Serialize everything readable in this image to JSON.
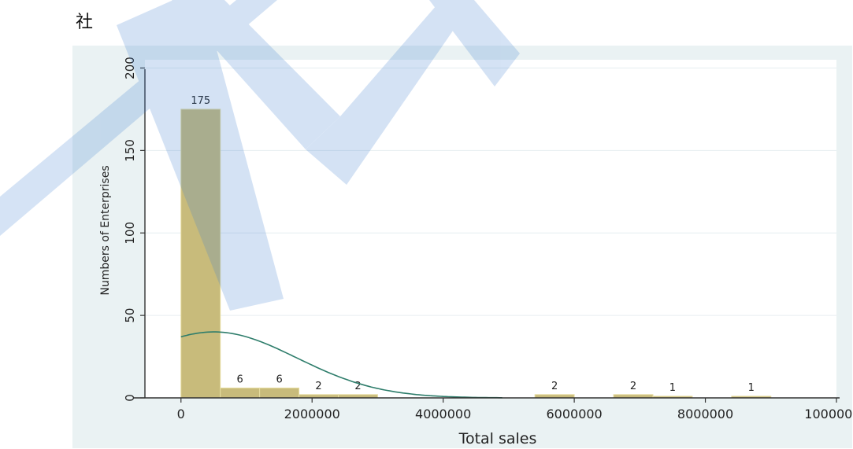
{
  "document": {
    "leading_char": "社"
  },
  "colors": {
    "bar_fill": "#c8bb7b",
    "bar_stroke": "#e6dca0",
    "curve": "#2e7d6b",
    "plot_bg": "#ffffff",
    "figure_bg": "#eaf2f3",
    "grid": "#e6eef0",
    "watermark": "#3f7fd1"
  },
  "chart_data": {
    "type": "bar",
    "title": "",
    "xlabel": "Total sales",
    "ylabel": "Numbers of Enterprises",
    "xlim": [
      -550000,
      10000000
    ],
    "ylim": [
      0,
      205
    ],
    "xticks": [
      0,
      2000000,
      4000000,
      6000000,
      8000000,
      10000000
    ],
    "xtick_labels": [
      "0",
      "2000000",
      "4000000",
      "6000000",
      "8000000",
      "10000000"
    ],
    "yticks": [
      0,
      50,
      100,
      150,
      200
    ],
    "ytick_labels": [
      "0",
      "50",
      "100",
      "150",
      "200"
    ],
    "grid": true,
    "bin_width": 600000,
    "bins": [
      {
        "x0": 0,
        "value": 175,
        "label": "175"
      },
      {
        "x0": 600000,
        "value": 6,
        "label": "6"
      },
      {
        "x0": 1200000,
        "value": 6,
        "label": "6"
      },
      {
        "x0": 1800000,
        "value": 2,
        "label": "2"
      },
      {
        "x0": 2400000,
        "value": 2,
        "label": "2"
      },
      {
        "x0": 5400000,
        "value": 2,
        "label": "2"
      },
      {
        "x0": 6600000,
        "value": 2,
        "label": "2"
      },
      {
        "x0": 7200000,
        "value": 1,
        "label": "1"
      },
      {
        "x0": 8400000,
        "value": 1,
        "label": "1"
      }
    ],
    "density_curve": {
      "kind": "normal",
      "peak_x": 500000,
      "peak_y": 40,
      "y_at_0": 37,
      "x_end": 4900000
    }
  }
}
